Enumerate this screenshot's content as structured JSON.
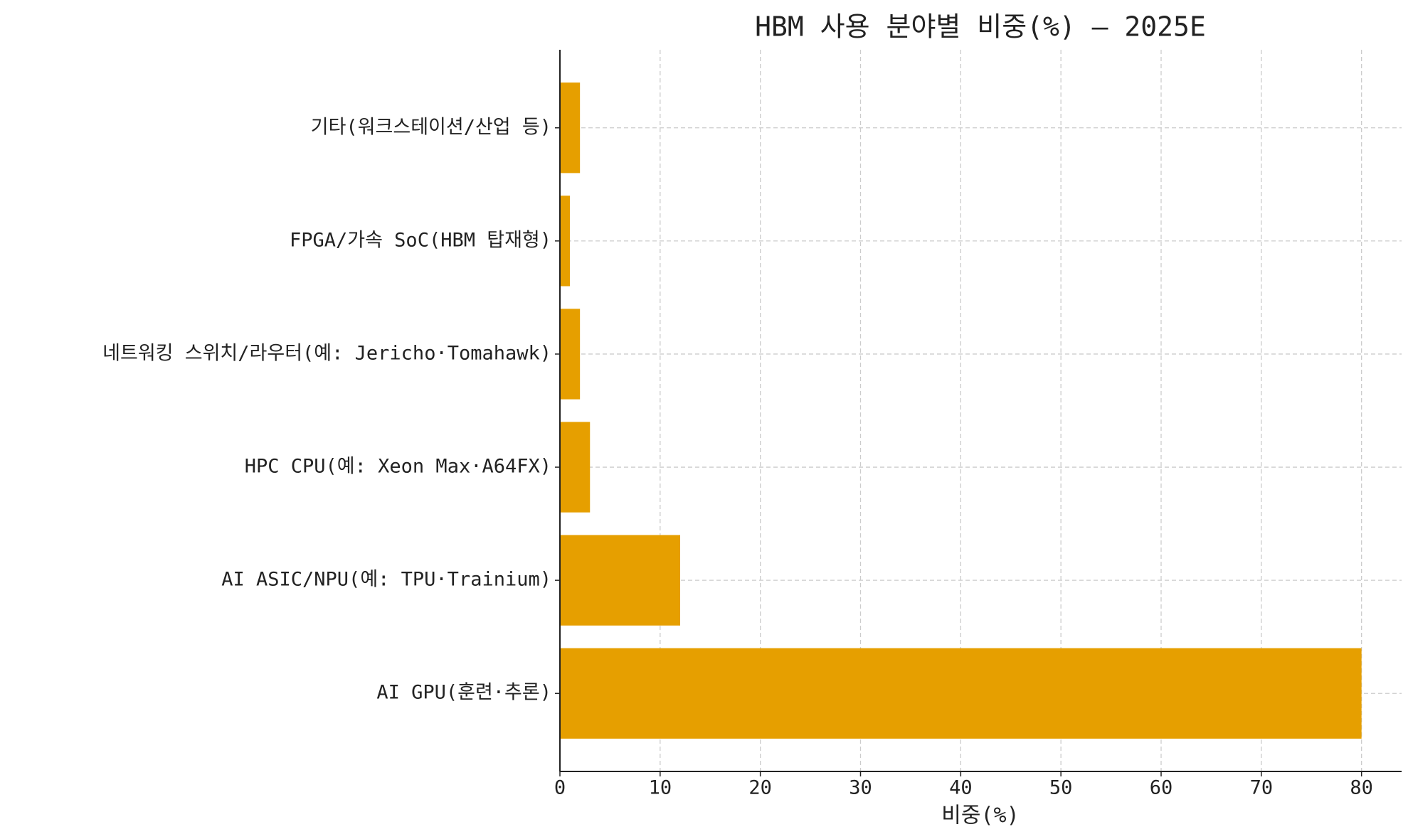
{
  "chart_data": {
    "type": "bar",
    "orientation": "horizontal",
    "title": "HBM 사용 분야별 비중(%) — 2025E",
    "xlabel": "비중(%)",
    "categories": [
      "AI GPU(훈련·추론)",
      "AI ASIC/NPU(예: TPU·Trainium)",
      "HPC CPU(예: Xeon Max·A64FX)",
      "네트워킹 스위치/라우터(예: Jericho·Tomahawk)",
      "FPGA/가속 SoC(HBM 탑재형)",
      "기타(워크스테이션/산업 등)"
    ],
    "values": [
      80,
      12,
      3,
      2,
      1,
      2
    ],
    "color": "#E69F00",
    "xlim": [
      0,
      84
    ],
    "xticks": [
      0,
      10,
      20,
      30,
      40,
      50,
      60,
      70,
      80
    ],
    "grid": true
  }
}
